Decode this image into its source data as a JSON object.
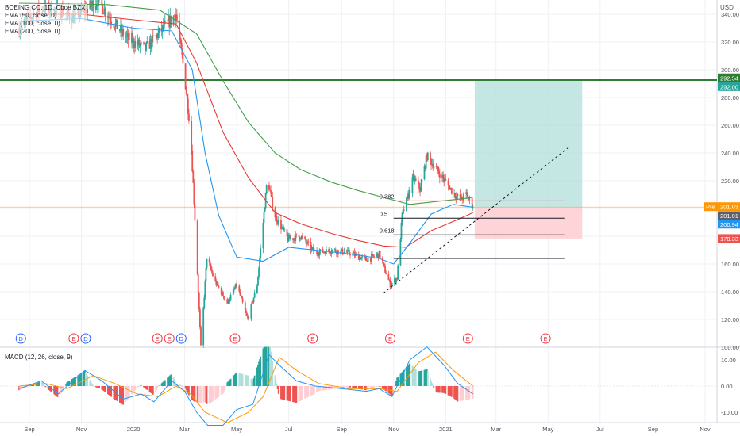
{
  "header": {
    "symbol_line": "BOEING CO, 1D, Cboe BZX",
    "ema50": "EMA (50, close, 0)",
    "ema100": "EMA (100, close, 0)",
    "ema200": "EMA (200, close, 0)",
    "currency": "USD"
  },
  "macd_label": "MACD (12, 26, close, 9)",
  "colors": {
    "up": "#26a69a",
    "down": "#ef5350",
    "ema50": "#2196f3",
    "ema100": "#e53935",
    "ema200": "#43a047",
    "resistance": "#2e7d32",
    "price_line": "#ff9800",
    "target_zone": "#b2dfdb",
    "stop_zone": "#ffcdd2",
    "macd_line": "#2196f3",
    "signal_line": "#ff9800"
  },
  "chart_data": {
    "type": "candlestick",
    "x_labels": [
      "Sep",
      "Nov",
      "2020",
      "Mar",
      "May",
      "Jul",
      "Sep",
      "Nov",
      "2021",
      "Mar",
      "May",
      "Jul",
      "Sep",
      "Nov"
    ],
    "y_ticks": [
      "340.00",
      "320.00",
      "300.00",
      "280.00",
      "260.00",
      "240.00",
      "220.00",
      "200.00",
      "180.00",
      "160.00",
      "140.00",
      "120.00",
      "100.00"
    ],
    "ylim": [
      95,
      350
    ],
    "price_path": [
      [
        "2019-08-20",
        330
      ],
      [
        "2019-09-15",
        345
      ],
      [
        "2019-10-10",
        342
      ],
      [
        "2019-10-25",
        337
      ],
      [
        "2019-11-20",
        350
      ],
      [
        "2019-12-10",
        333
      ],
      [
        "2019-12-24",
        323
      ],
      [
        "2020-01-15",
        315
      ],
      [
        "2020-02-05",
        330
      ],
      [
        "2020-02-20",
        340
      ],
      [
        "2020-03-01",
        295
      ],
      [
        "2020-03-08",
        255
      ],
      [
        "2020-03-14",
        180
      ],
      [
        "2020-03-20",
        100
      ],
      [
        "2020-03-27",
        165
      ],
      [
        "2020-04-05",
        148
      ],
      [
        "2020-04-20",
        132
      ],
      [
        "2020-05-01",
        145
      ],
      [
        "2020-05-14",
        120
      ],
      [
        "2020-05-25",
        145
      ],
      [
        "2020-06-06",
        222
      ],
      [
        "2020-06-14",
        196
      ],
      [
        "2020-06-30",
        178
      ],
      [
        "2020-07-15",
        180
      ],
      [
        "2020-08-01",
        168
      ],
      [
        "2020-08-20",
        170
      ],
      [
        "2020-09-10",
        168
      ],
      [
        "2020-09-30",
        163
      ],
      [
        "2020-10-15",
        167
      ],
      [
        "2020-10-28",
        145
      ],
      [
        "2020-11-05",
        150
      ],
      [
        "2020-11-11",
        195
      ],
      [
        "2020-11-24",
        222
      ],
      [
        "2020-12-02",
        214
      ],
      [
        "2020-12-10",
        238
      ],
      [
        "2020-12-25",
        225
      ],
      [
        "2021-01-08",
        213
      ],
      [
        "2021-01-18",
        206
      ],
      [
        "2021-01-25",
        210
      ],
      [
        "2021-02-02",
        201.01
      ]
    ],
    "ema50_path": [
      [
        "2019-08-20",
        335
      ],
      [
        "2019-11-01",
        337
      ],
      [
        "2020-01-01",
        330
      ],
      [
        "2020-02-15",
        328
      ],
      [
        "2020-03-10",
        300
      ],
      [
        "2020-03-25",
        240
      ],
      [
        "2020-04-10",
        195
      ],
      [
        "2020-05-01",
        165
      ],
      [
        "2020-06-01",
        162
      ],
      [
        "2020-07-01",
        172
      ],
      [
        "2020-08-01",
        170
      ],
      [
        "2020-09-15",
        167
      ],
      [
        "2020-10-15",
        164
      ],
      [
        "2020-11-01",
        160
      ],
      [
        "2020-11-20",
        175
      ],
      [
        "2020-12-15",
        196
      ],
      [
        "2021-01-10",
        203
      ],
      [
        "2021-02-02",
        200.94
      ]
    ],
    "ema100_path": [
      [
        "2019-08-20",
        340
      ],
      [
        "2019-11-01",
        340
      ],
      [
        "2020-01-01",
        336
      ],
      [
        "2020-02-20",
        333
      ],
      [
        "2020-03-15",
        305
      ],
      [
        "2020-04-15",
        255
      ],
      [
        "2020-05-15",
        222
      ],
      [
        "2020-06-15",
        197
      ],
      [
        "2020-07-15",
        189
      ],
      [
        "2020-08-20",
        182
      ],
      [
        "2020-09-20",
        177
      ],
      [
        "2020-10-20",
        173
      ],
      [
        "2020-11-15",
        172
      ],
      [
        "2020-12-15",
        184
      ],
      [
        "2021-01-15",
        192
      ],
      [
        "2021-02-02",
        197
      ]
    ],
    "ema200_path": [
      [
        "2019-08-20",
        348
      ],
      [
        "2019-12-01",
        347
      ],
      [
        "2020-02-01",
        343
      ],
      [
        "2020-03-15",
        326
      ],
      [
        "2020-04-15",
        292
      ],
      [
        "2020-05-15",
        262
      ],
      [
        "2020-06-15",
        240
      ],
      [
        "2020-07-15",
        228
      ],
      [
        "2020-08-20",
        219
      ],
      [
        "2020-09-20",
        213
      ],
      [
        "2020-10-20",
        208
      ],
      [
        "2020-11-20",
        203
      ],
      [
        "2020-12-20",
        205
      ],
      [
        "2021-01-20",
        207
      ],
      [
        "2021-02-02",
        208
      ]
    ],
    "resistance_level": 292.54,
    "resistance_label": "292.54",
    "target_level": 292.0,
    "target_label": "292.00",
    "last_price": 201.01,
    "pre_label": "Pre",
    "pre_price_label": "201.03",
    "last_price_label": "201.01",
    "ema50_value_label": "200.94",
    "stop_level": 178.33,
    "stop_label": "178.33",
    "position": {
      "start": "2021-02-04",
      "end": "2021-06-10",
      "entry": 201.01,
      "target": 292.0,
      "stop": 178.33
    },
    "fib_levels": [
      {
        "label": "0.382",
        "value": 205.5,
        "color": "#ef5350"
      },
      {
        "label": "0.5",
        "value": 193.0,
        "color": "#131722"
      },
      {
        "label": "0.618",
        "value": 181.0,
        "color": "#131722"
      },
      {
        "label": "",
        "value": 164.0,
        "color": "#131722"
      }
    ],
    "fib_range": {
      "start": "2020-11-01",
      "end": "2021-05-20"
    },
    "trendline": {
      "start_date": "2020-10-20",
      "start_value": 139,
      "end_date": "2021-05-25",
      "end_value": 244
    },
    "event_markers": [
      {
        "date": "2019-08-22",
        "label": "D",
        "kind": "dividend"
      },
      {
        "date": "2019-10-23",
        "label": "E",
        "kind": "earnings"
      },
      {
        "date": "2019-11-06",
        "label": "D",
        "kind": "dividend"
      },
      {
        "date": "2020-01-29",
        "label": "E",
        "kind": "earnings"
      },
      {
        "date": "2020-02-12",
        "label": "E",
        "kind": "earnings"
      },
      {
        "date": "2020-02-26",
        "label": "D",
        "kind": "dividend"
      },
      {
        "date": "2020-04-29",
        "label": "E",
        "kind": "earnings"
      },
      {
        "date": "2020-07-29",
        "label": "E",
        "kind": "earnings"
      },
      {
        "date": "2020-10-28",
        "label": "E",
        "kind": "earnings"
      },
      {
        "date": "2021-01-27",
        "label": "E",
        "kind": "earnings"
      },
      {
        "date": "2021-04-28",
        "label": "E",
        "kind": "earnings"
      }
    ],
    "macd": {
      "y_ticks": [
        "10.00",
        "0.00",
        "-10.00"
      ],
      "ylim": [
        -13,
        15
      ],
      "macd_path": [
        [
          "2019-08-20",
          -1
        ],
        [
          "2019-09-15",
          2
        ],
        [
          "2019-10-05",
          -3
        ],
        [
          "2019-11-05",
          6
        ],
        [
          "2019-11-25",
          2
        ],
        [
          "2019-12-20",
          -5
        ],
        [
          "2020-01-10",
          -3
        ],
        [
          "2020-01-25",
          -6
        ],
        [
          "2020-02-15",
          2
        ],
        [
          "2020-03-01",
          -2
        ],
        [
          "2020-03-15",
          -10
        ],
        [
          "2020-03-28",
          -15
        ],
        [
          "2020-04-15",
          -15
        ],
        [
          "2020-05-01",
          -9
        ],
        [
          "2020-05-20",
          -7
        ],
        [
          "2020-06-08",
          12
        ],
        [
          "2020-06-20",
          8
        ],
        [
          "2020-07-10",
          2
        ],
        [
          "2020-08-01",
          0
        ],
        [
          "2020-09-01",
          -1
        ],
        [
          "2020-09-30",
          -2
        ],
        [
          "2020-10-15",
          -1
        ],
        [
          "2020-10-30",
          -4
        ],
        [
          "2020-11-20",
          10
        ],
        [
          "2020-12-10",
          15
        ],
        [
          "2020-12-30",
          8
        ],
        [
          "2021-01-15",
          1
        ],
        [
          "2021-02-02",
          -3
        ]
      ],
      "signal_path": [
        [
          "2019-08-20",
          0
        ],
        [
          "2019-09-20",
          1
        ],
        [
          "2019-10-15",
          -1
        ],
        [
          "2019-11-15",
          4
        ],
        [
          "2019-12-10",
          1
        ],
        [
          "2020-01-05",
          -3
        ],
        [
          "2020-01-30",
          -4
        ],
        [
          "2020-02-20",
          0
        ],
        [
          "2020-03-08",
          -3
        ],
        [
          "2020-03-25",
          -10
        ],
        [
          "2020-04-20",
          -14
        ],
        [
          "2020-05-15",
          -10
        ],
        [
          "2020-06-01",
          -4
        ],
        [
          "2020-06-20",
          11
        ],
        [
          "2020-07-10",
          6
        ],
        [
          "2020-08-05",
          1
        ],
        [
          "2020-09-10",
          -1
        ],
        [
          "2020-10-15",
          -1
        ],
        [
          "2020-11-05",
          -2
        ],
        [
          "2020-11-30",
          9
        ],
        [
          "2020-12-20",
          13
        ],
        [
          "2021-01-10",
          6
        ],
        [
          "2021-02-02",
          0
        ]
      ]
    }
  }
}
